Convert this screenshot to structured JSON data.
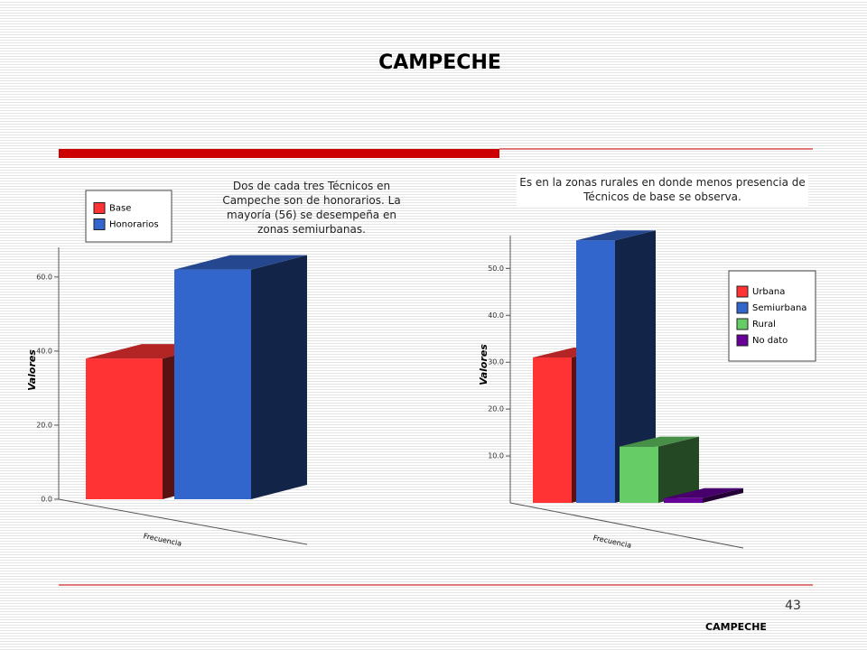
{
  "title": "CAMPECHE",
  "captions": [
    "Dos de cada tres Técnicos en Campeche son de honorarios. La mayoría (56) se desempeña en zonas semiurbanas.",
    "Es en la zonas rurales en donde menos presencia de Técnicos de base se observa."
  ],
  "page_number": "43",
  "footer": "CAMPECHE",
  "chart_data": [
    {
      "type": "bar3d",
      "y_label": "Valores",
      "categories": [
        "Frecuencia"
      ],
      "series": [
        {
          "name": "Base",
          "color": "#ff3333",
          "values": [
            38
          ]
        },
        {
          "name": "Honorarios",
          "color": "#3366cc",
          "values": [
            62
          ]
        }
      ],
      "ylim": [
        0,
        68
      ],
      "yticks": [
        {
          "value": 0,
          "label": "0.0"
        },
        {
          "value": 20,
          "label": "20.0"
        },
        {
          "value": 40,
          "label": "40.0"
        },
        {
          "value": 60,
          "label": "60.0"
        }
      ]
    },
    {
      "type": "bar3d",
      "y_label": "Valores",
      "categories": [
        "Frecuencia"
      ],
      "series": [
        {
          "name": "Urbana",
          "color": "#ff3333",
          "values": [
            31
          ]
        },
        {
          "name": "Semiurbana",
          "color": "#3366cc",
          "values": [
            56
          ]
        },
        {
          "name": "Rural",
          "color": "#66cc66",
          "values": [
            12
          ]
        },
        {
          "name": "No dato",
          "color": "#660099",
          "values": [
            1
          ]
        }
      ],
      "ylim": [
        0,
        57
      ],
      "yticks": [
        {
          "value": 10,
          "label": "10.0"
        },
        {
          "value": 20,
          "label": "20.0"
        },
        {
          "value": 30,
          "label": "30.0"
        },
        {
          "value": 40,
          "label": "40.0"
        },
        {
          "value": 50,
          "label": "50.0"
        }
      ]
    }
  ]
}
